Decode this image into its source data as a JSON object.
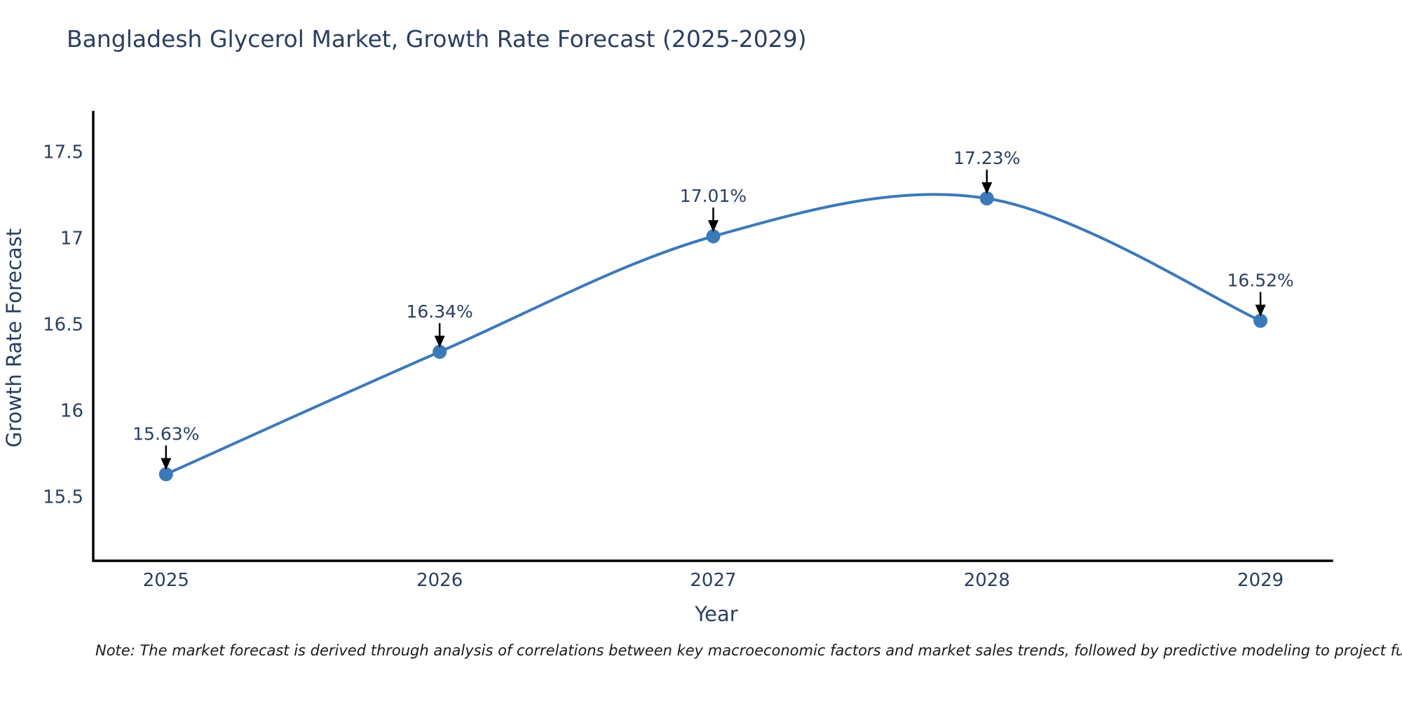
{
  "page": {
    "title": "Bangladesh Glycerol Market, Growth Rate Forecast (2025-2029)",
    "note": "Note: The market forecast is derived through analysis of correlations between key macroeconomic factors and market sales trends, followed by predictive modeling to project future sal"
  },
  "chart_data": {
    "type": "line",
    "title": "Bangladesh Glycerol Market, Growth Rate Forecast (2025-2029)",
    "xlabel": "Year",
    "ylabel": "Growth Rate Forecast",
    "x": [
      2025,
      2026,
      2027,
      2028,
      2029
    ],
    "values": [
      15.63,
      16.34,
      17.01,
      17.23,
      16.52
    ],
    "series": [
      {
        "name": "Growth Rate Forecast",
        "values": [
          15.63,
          16.34,
          17.01,
          17.23,
          16.52
        ]
      }
    ],
    "annotations": [
      "15.63%",
      "16.34%",
      "17.01%",
      "17.23%",
      "16.52%"
    ],
    "x_tick_labels": [
      "2025",
      "2026",
      "2027",
      "2028",
      "2029"
    ],
    "y_ticks": [
      15.5,
      16,
      16.5,
      17,
      17.5
    ],
    "y_tick_labels": [
      "15.5",
      "16",
      "16.5",
      "17",
      "17.5"
    ],
    "xlim": [
      2024.734,
      2029.261
    ],
    "ylim": [
      15.128,
      17.73
    ],
    "line_shape": "spline",
    "grid": false,
    "legend": "none",
    "colors": {
      "line": "#3c79b8",
      "marker": "#3c79b8",
      "annotation_text": "#2a3f5f",
      "annotation_arrow": "#000000",
      "axis_line": "#000000",
      "tick_text": "#2a3f5f",
      "title_text": "#2a3f5f",
      "note_text": "#1a1a1a",
      "background": "#ffffff"
    }
  }
}
